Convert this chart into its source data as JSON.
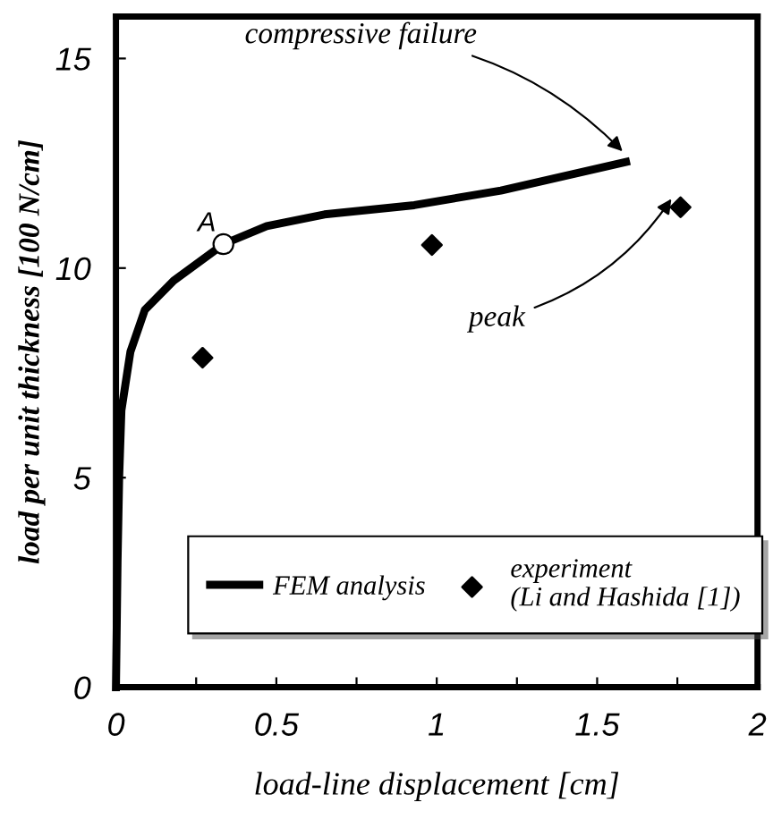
{
  "chart_data": {
    "type": "line",
    "xlabel": "load-line displacement [cm]",
    "ylabel": "load per unit thickness [100 N/cm]",
    "xlim": [
      0,
      2
    ],
    "ylim": [
      0,
      16
    ],
    "xticks": [
      0,
      {
        "value": 0.25,
        "label": null
      },
      0.5,
      {
        "value": 0.75,
        "label": null
      },
      1,
      {
        "value": 1.25,
        "label": null
      },
      1.5,
      {
        "value": 1.75,
        "label": null
      },
      2
    ],
    "yticks": [
      0,
      5,
      10,
      15
    ],
    "grid": false,
    "legend": "bottom",
    "series": [
      {
        "name": "FEM analysis",
        "color": "#000000",
        "marker": "none",
        "line_style": "solid",
        "x": [
          0,
          0.005,
          0.01,
          0.017,
          0.045,
          0.09,
          0.18,
          0.335,
          0.47,
          0.65,
          0.93,
          1.2,
          1.59
        ],
        "values": [
          0,
          3,
          5,
          6.6,
          8.0,
          9.0,
          9.7,
          10.57,
          11.0,
          11.28,
          11.5,
          11.85,
          12.53
        ]
      },
      {
        "name": "experiment\n(Li and Hashida [1])",
        "type": "scatter",
        "color": "#000000",
        "marker": "diamond",
        "x": [
          0.27,
          0.985,
          1.76
        ],
        "values": [
          7.86,
          10.55,
          11.45
        ]
      }
    ],
    "annotations": [
      {
        "text": "A",
        "x": 0.335,
        "y": 10.57
      },
      {
        "text": "compressive failure",
        "x": 1.59,
        "y": 12.7
      },
      {
        "text": "peak",
        "x": 1.74,
        "y": 11.75
      }
    ]
  }
}
